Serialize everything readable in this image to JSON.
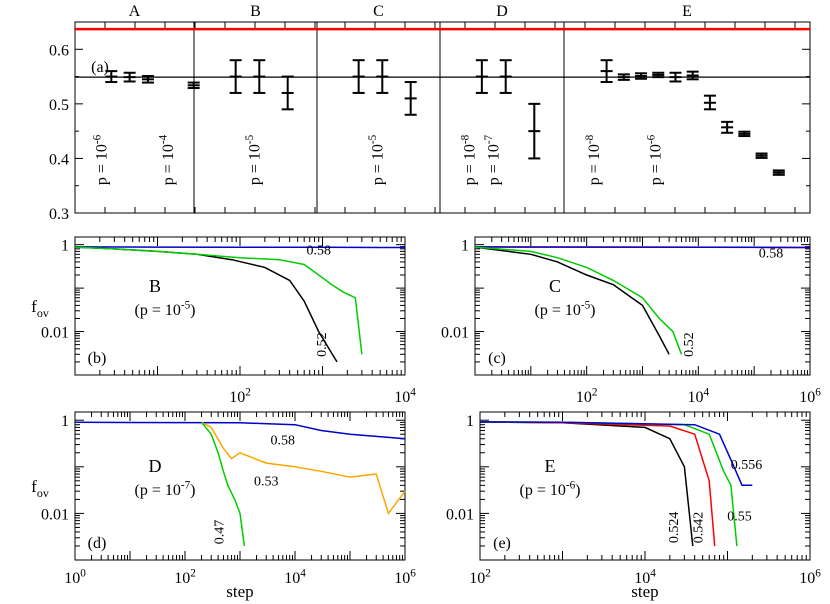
{
  "chart_data": [
    {
      "id": "a",
      "type": "errorbar",
      "panel_label": "(a)",
      "ylim": [
        0.3,
        0.65
      ],
      "yticks": [
        "0.3",
        "0.4",
        "0.5",
        "0.6"
      ],
      "yticks_v": [
        0.3,
        0.4,
        0.5,
        0.6
      ],
      "hlines": [
        {
          "name": "red-reference-line",
          "y": 0.637,
          "color": "#ff0000"
        },
        {
          "name": "black-reference-line",
          "y": 0.549,
          "color": "#000000"
        }
      ],
      "groups": [
        {
          "name": "A",
          "points": [
            {
              "x": 0.4,
              "y": 0.55,
              "lo": 0.54,
              "hi": 0.56
            },
            {
              "x": 0.8,
              "y": 0.549,
              "lo": 0.541,
              "hi": 0.557
            },
            {
              "x": 1.2,
              "y": 0.545,
              "lo": 0.539,
              "hi": 0.551
            },
            {
              "x": 2.2,
              "y": 0.534,
              "lo": 0.529,
              "hi": 0.539
            }
          ],
          "labels": [
            {
              "base": "p = 10",
              "exp": "-6",
              "x": 0.3
            },
            {
              "base": "p = 10",
              "exp": "-4",
              "x": 1.75
            }
          ]
        },
        {
          "name": "B",
          "points": [
            {
              "x": 0.5,
              "y": 0.55,
              "lo": 0.52,
              "hi": 0.58
            },
            {
              "x": 1.0,
              "y": 0.55,
              "lo": 0.52,
              "hi": 0.58
            },
            {
              "x": 1.6,
              "y": 0.52,
              "lo": 0.49,
              "hi": 0.55
            }
          ],
          "labels": [
            {
              "base": "p = 10",
              "exp": "-5",
              "x": 1.0
            }
          ]
        },
        {
          "name": "C",
          "points": [
            {
              "x": 0.5,
              "y": 0.55,
              "lo": 0.52,
              "hi": 0.58
            },
            {
              "x": 1.0,
              "y": 0.55,
              "lo": 0.52,
              "hi": 0.58
            },
            {
              "x": 1.6,
              "y": 0.51,
              "lo": 0.48,
              "hi": 0.54
            }
          ],
          "labels": [
            {
              "base": "p = 10",
              "exp": "-5",
              "x": 1.0
            }
          ]
        },
        {
          "name": "D",
          "points": [
            {
              "x": 0.5,
              "y": 0.55,
              "lo": 0.52,
              "hi": 0.58
            },
            {
              "x": 1.0,
              "y": 0.55,
              "lo": 0.52,
              "hi": 0.58
            },
            {
              "x": 1.6,
              "y": 0.45,
              "lo": 0.4,
              "hi": 0.5
            }
          ],
          "labels": [
            {
              "base": "p = 10",
              "exp": "-8",
              "x": 0.35
            },
            {
              "base": "p = 10",
              "exp": "-7",
              "x": 0.85
            }
          ]
        },
        {
          "name": "E",
          "points": [
            {
              "x": 0.5,
              "y": 0.56,
              "lo": 0.54,
              "hi": 0.58
            },
            {
              "x": 0.85,
              "y": 0.549,
              "lo": 0.544,
              "hi": 0.554
            },
            {
              "x": 1.2,
              "y": 0.551,
              "lo": 0.546,
              "hi": 0.556
            },
            {
              "x": 1.55,
              "y": 0.553,
              "lo": 0.549,
              "hi": 0.557
            },
            {
              "x": 1.9,
              "y": 0.549,
              "lo": 0.541,
              "hi": 0.557
            },
            {
              "x": 2.25,
              "y": 0.552,
              "lo": 0.545,
              "hi": 0.559
            },
            {
              "x": 2.6,
              "y": 0.502,
              "lo": 0.49,
              "hi": 0.515
            },
            {
              "x": 2.95,
              "y": 0.457,
              "lo": 0.447,
              "hi": 0.467
            },
            {
              "x": 3.3,
              "y": 0.445,
              "lo": 0.441,
              "hi": 0.449
            },
            {
              "x": 3.65,
              "y": 0.405,
              "lo": 0.401,
              "hi": 0.409
            },
            {
              "x": 4.0,
              "y": 0.374,
              "lo": 0.37,
              "hi": 0.378
            }
          ],
          "labels": [
            {
              "base": "p = 10",
              "exp": "-8",
              "x": 0.35
            },
            {
              "base": "p = 10",
              "exp": "-6",
              "x": 1.6
            }
          ]
        }
      ]
    },
    {
      "id": "b",
      "type": "line",
      "panel_label": "(b)",
      "ylabel": "f",
      "ylabel_sub": "ov",
      "xlim": [
        1,
        10000
      ],
      "ylim": [
        0.001,
        1.5
      ],
      "annotation": {
        "name": "B",
        "base": "(p = 10",
        "exp": "-5",
        "tail": ")"
      },
      "series": [
        {
          "name": "0.58",
          "color": "#0000cc",
          "points": [
            [
              1,
              0.89
            ],
            [
              10,
              0.88
            ],
            [
              100,
              0.87
            ],
            [
              1000,
              0.87
            ],
            [
              10000,
              0.86
            ]
          ]
        },
        {
          "name": "0.52",
          "color": "#000000",
          "points": [
            [
              1,
              0.88
            ],
            [
              3,
              0.8
            ],
            [
              10,
              0.7
            ],
            [
              30,
              0.6
            ],
            [
              80,
              0.45
            ],
            [
              200,
              0.3
            ],
            [
              400,
              0.15
            ],
            [
              600,
              0.05
            ],
            [
              900,
              0.01
            ],
            [
              1200,
              0.004
            ],
            [
              1500,
              0.002
            ]
          ]
        },
        {
          "name": "0.52 (green)",
          "color": "#00cc00",
          "points": [
            [
              1,
              0.88
            ],
            [
              3,
              0.8
            ],
            [
              10,
              0.7
            ],
            [
              30,
              0.6
            ],
            [
              100,
              0.5
            ],
            [
              300,
              0.45
            ],
            [
              600,
              0.35
            ],
            [
              900,
              0.2
            ],
            [
              1300,
              0.12
            ],
            [
              1800,
              0.08
            ],
            [
              2500,
              0.06
            ],
            [
              3000,
              0.003
            ]
          ]
        }
      ],
      "line_labels": [
        {
          "text": "0.58",
          "x": 900,
          "y": 0.6
        },
        {
          "text": "0.52",
          "x": 1100,
          "y": 0.005,
          "rot": -90
        }
      ]
    },
    {
      "id": "c",
      "type": "line",
      "panel_label": "(c)",
      "xlim": [
        1,
        1000000
      ],
      "ylim": [
        0.001,
        1.5
      ],
      "annotation": {
        "name": "C",
        "base": "(p = 10",
        "exp": "-5",
        "tail": ")"
      },
      "series": [
        {
          "name": "0.58 red",
          "color": "#ff0000",
          "points": [
            [
              1,
              0.89
            ],
            [
              1000,
              0.88
            ],
            [
              1000000,
              0.86
            ]
          ]
        },
        {
          "name": "0.58",
          "color": "#0000cc",
          "points": [
            [
              1,
              0.89
            ],
            [
              1000,
              0.88
            ],
            [
              100000,
              0.87
            ],
            [
              1000000,
              0.86
            ]
          ]
        },
        {
          "name": "0.52",
          "color": "#000000",
          "points": [
            [
              1,
              0.88
            ],
            [
              10,
              0.6
            ],
            [
              30,
              0.4
            ],
            [
              100,
              0.2
            ],
            [
              300,
              0.12
            ],
            [
              1000,
              0.04
            ],
            [
              2000,
              0.008
            ],
            [
              3000,
              0.003
            ]
          ]
        },
        {
          "name": "0.52 (green)",
          "color": "#00cc00",
          "points": [
            [
              1,
              0.88
            ],
            [
              10,
              0.7
            ],
            [
              30,
              0.5
            ],
            [
              100,
              0.3
            ],
            [
              300,
              0.15
            ],
            [
              1000,
              0.06
            ],
            [
              2000,
              0.02
            ],
            [
              3500,
              0.01
            ],
            [
              5000,
              0.003
            ]
          ]
        }
      ],
      "line_labels": [
        {
          "text": "0.58",
          "x": 200000,
          "y": 0.5
        },
        {
          "text": "0.52",
          "x": 8000,
          "y": 0.005,
          "rot": -90
        }
      ]
    },
    {
      "id": "d",
      "type": "line",
      "panel_label": "(d)",
      "ylabel": "f",
      "ylabel_sub": "ov",
      "xlabel": "step",
      "xlim": [
        1,
        1000000
      ],
      "ylim": [
        0.001,
        1.5
      ],
      "annotation": {
        "name": "D",
        "base": "(p = 10",
        "exp": "-7",
        "tail": ")"
      },
      "series": [
        {
          "name": "0.58",
          "color": "#0000cc",
          "points": [
            [
              1,
              0.9
            ],
            [
              1000,
              0.88
            ],
            [
              10000,
              0.8
            ],
            [
              30000,
              0.6
            ],
            [
              100000,
              0.5
            ],
            [
              300000,
              0.45
            ],
            [
              1000000,
              0.4
            ]
          ]
        },
        {
          "name": "0.53",
          "color": "#ffa500",
          "points": [
            [
              200,
              0.9
            ],
            [
              300,
              0.7
            ],
            [
              500,
              0.25
            ],
            [
              700,
              0.15
            ],
            [
              1000,
              0.2
            ],
            [
              3000,
              0.12
            ],
            [
              10000,
              0.1
            ],
            [
              30000,
              0.08
            ],
            [
              100000,
              0.06
            ],
            [
              300000,
              0.07
            ],
            [
              500000,
              0.01
            ],
            [
              1000000,
              0.03
            ]
          ]
        },
        {
          "name": "0.47",
          "color": "#00cc00",
          "points": [
            [
              200,
              0.9
            ],
            [
              300,
              0.5
            ],
            [
              400,
              0.2
            ],
            [
              500,
              0.08
            ],
            [
              600,
              0.04
            ],
            [
              800,
              0.02
            ],
            [
              1000,
              0.01
            ],
            [
              1200,
              0.002
            ]
          ]
        }
      ],
      "line_labels": [
        {
          "text": "0.58",
          "x": 6000,
          "y": 0.3
        },
        {
          "text": "0.53",
          "x": 3000,
          "y": 0.04
        },
        {
          "text": "0.47",
          "x": 500,
          "y": 0.004,
          "rot": -90
        }
      ]
    },
    {
      "id": "e",
      "type": "line",
      "panel_label": "(e)",
      "xlabel": "step",
      "xlim": [
        100,
        1000000
      ],
      "ylim": [
        0.001,
        1.5
      ],
      "annotation": {
        "name": "E",
        "base": "(p = 10",
        "exp": "-6",
        "tail": ")"
      },
      "series": [
        {
          "name": "0.524",
          "color": "#000000",
          "points": [
            [
              100,
              0.92
            ],
            [
              1000,
              0.88
            ],
            [
              10000,
              0.7
            ],
            [
              20000,
              0.4
            ],
            [
              30000,
              0.1
            ],
            [
              38000,
              0.002
            ]
          ]
        },
        {
          "name": "0.542",
          "color": "#ff0000",
          "points": [
            [
              100,
              0.92
            ],
            [
              1000,
              0.88
            ],
            [
              20000,
              0.75
            ],
            [
              40000,
              0.5
            ],
            [
              60000,
              0.05
            ],
            [
              70000,
              0.002
            ]
          ]
        },
        {
          "name": "0.55",
          "color": "#00cc00",
          "points": [
            [
              100,
              0.92
            ],
            [
              1000,
              0.9
            ],
            [
              30000,
              0.8
            ],
            [
              60000,
              0.5
            ],
            [
              90000,
              0.08
            ],
            [
              110000,
              0.04
            ],
            [
              130000,
              0.002
            ]
          ]
        },
        {
          "name": "0.556",
          "color": "#0000cc",
          "points": [
            [
              100,
              0.92
            ],
            [
              1000,
              0.9
            ],
            [
              40000,
              0.8
            ],
            [
              80000,
              0.5
            ],
            [
              120000,
              0.1
            ],
            [
              150000,
              0.04
            ],
            [
              200000,
              0.04
            ]
          ]
        }
      ],
      "line_labels": [
        {
          "text": "0.524",
          "x": 25000,
          "y": 0.005,
          "rot": -90
        },
        {
          "text": "0.542",
          "x": 50000,
          "y": 0.005,
          "rot": -90
        },
        {
          "text": "0.55",
          "x": 140000,
          "y": 0.007
        },
        {
          "text": "0.556",
          "x": 170000,
          "y": 0.09
        }
      ]
    }
  ],
  "axes_labels": {
    "ytick_log": [
      "1",
      "0.01"
    ],
    "xtick_b_base": "10",
    "xtick_b": [
      "2",
      "4"
    ],
    "xtick_c_base": "10",
    "xtick_c": [
      "2",
      "4",
      "6"
    ],
    "xtick_d": [
      "0",
      "2",
      "4",
      "6"
    ],
    "xtick_e": [
      "2",
      "4",
      "6"
    ]
  }
}
